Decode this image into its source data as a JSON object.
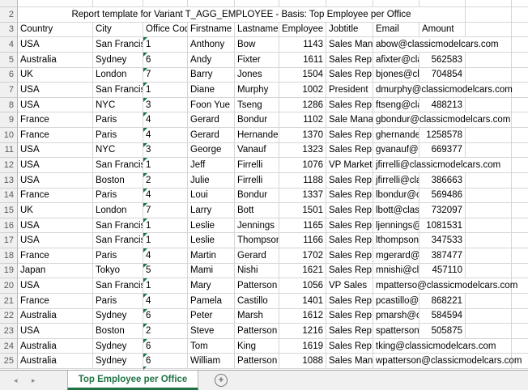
{
  "sheet": {
    "visible_row_numbers_start": 2,
    "title_row": {
      "row_number": "2",
      "title": "Report template for Variant T_AGG_EMPLOYEE - Basis: Top Employee per Office"
    },
    "header_row": {
      "row_number": "3",
      "columns": [
        "Country",
        "City",
        "Office Code",
        "Firstname",
        "Lastname",
        "Employee",
        "Jobtitle",
        "Email",
        "Amount"
      ]
    },
    "rows": [
      {
        "row_number": "4",
        "country": "USA",
        "city": "San Francisco",
        "office_code": "1",
        "firstname": "Anthony",
        "lastname": "Bow",
        "employee": "1143",
        "jobtitle": "Sales Manager (NA)",
        "email": "abow@classicmodelcars.com",
        "amount": "",
        "email_spills": true
      },
      {
        "row_number": "5",
        "country": "Australia",
        "city": "Sydney",
        "office_code": "6",
        "firstname": "Andy",
        "lastname": "Fixter",
        "employee": "1611",
        "jobtitle": "Sales Rep",
        "email": "afixter@classicmodelcars.com",
        "amount": "562583",
        "email_spills": false
      },
      {
        "row_number": "6",
        "country": "UK",
        "city": "London",
        "office_code": "7",
        "firstname": "Barry",
        "lastname": "Jones",
        "employee": "1504",
        "jobtitle": "Sales Rep",
        "email": "bjones@classicmodelcars.com",
        "amount": "704854",
        "email_spills": false
      },
      {
        "row_number": "7",
        "country": "USA",
        "city": "San Francisco",
        "office_code": "1",
        "firstname": "Diane",
        "lastname": "Murphy",
        "employee": "1002",
        "jobtitle": "President",
        "email": "dmurphy@classicmodelcars.com",
        "amount": "",
        "email_spills": true
      },
      {
        "row_number": "8",
        "country": "USA",
        "city": "NYC",
        "office_code": "3",
        "firstname": "Foon Yue",
        "lastname": "Tseng",
        "employee": "1286",
        "jobtitle": "Sales Rep",
        "email": "ftseng@classicmodelcars.com",
        "amount": "488213",
        "email_spills": false
      },
      {
        "row_number": "9",
        "country": "France",
        "city": "Paris",
        "office_code": "4",
        "firstname": "Gerard",
        "lastname": "Bondur",
        "employee": "1102",
        "jobtitle": "Sale Manager (EMEA)",
        "email": "gbondur@classicmodelcars.com",
        "amount": "",
        "email_spills": true
      },
      {
        "row_number": "10",
        "country": "France",
        "city": "Paris",
        "office_code": "4",
        "firstname": "Gerard",
        "lastname": "Hernandez",
        "employee": "1370",
        "jobtitle": "Sales Rep",
        "email": "ghernande@classicmodelcars.com",
        "amount": "1258578",
        "email_spills": false
      },
      {
        "row_number": "11",
        "country": "USA",
        "city": "NYC",
        "office_code": "3",
        "firstname": "George",
        "lastname": "Vanauf",
        "employee": "1323",
        "jobtitle": "Sales Rep",
        "email": "gvanauf@classicmodelcars.com",
        "amount": "669377",
        "email_spills": false
      },
      {
        "row_number": "12",
        "country": "USA",
        "city": "San Francisco",
        "office_code": "1",
        "firstname": "Jeff",
        "lastname": "Firrelli",
        "employee": "1076",
        "jobtitle": "VP Marketing",
        "email": "jfirrelli@classicmodelcars.com",
        "amount": "",
        "email_spills": true
      },
      {
        "row_number": "13",
        "country": "USA",
        "city": "Boston",
        "office_code": "2",
        "firstname": "Julie",
        "lastname": "Firrelli",
        "employee": "1188",
        "jobtitle": "Sales Rep",
        "email": "jfirrelli@classicmodelcars.com",
        "amount": "386663",
        "email_spills": false
      },
      {
        "row_number": "14",
        "country": "France",
        "city": "Paris",
        "office_code": "4",
        "firstname": "Loui",
        "lastname": "Bondur",
        "employee": "1337",
        "jobtitle": "Sales Rep",
        "email": "lbondur@classicmodelcars.com",
        "amount": "569486",
        "email_spills": false
      },
      {
        "row_number": "15",
        "country": "UK",
        "city": "London",
        "office_code": "7",
        "firstname": "Larry",
        "lastname": "Bott",
        "employee": "1501",
        "jobtitle": "Sales Rep",
        "email": "lbott@classicmodelcars.com",
        "amount": "732097",
        "email_spills": false
      },
      {
        "row_number": "16",
        "country": "USA",
        "city": "San Francisco",
        "office_code": "1",
        "firstname": "Leslie",
        "lastname": "Jennings",
        "employee": "1165",
        "jobtitle": "Sales Rep",
        "email": "ljennings@classicmodelcars.com",
        "amount": "1081531",
        "email_spills": false
      },
      {
        "row_number": "17",
        "country": "USA",
        "city": "San Francisco",
        "office_code": "1",
        "firstname": "Leslie",
        "lastname": "Thompson",
        "employee": "1166",
        "jobtitle": "Sales Rep",
        "email": "lthompson@classicmodelcars.com",
        "amount": "347533",
        "email_spills": false
      },
      {
        "row_number": "18",
        "country": "France",
        "city": "Paris",
        "office_code": "4",
        "firstname": "Martin",
        "lastname": "Gerard",
        "employee": "1702",
        "jobtitle": "Sales Rep",
        "email": "mgerard@classicmodelcars.com",
        "amount": "387477",
        "email_spills": false
      },
      {
        "row_number": "19",
        "country": "Japan",
        "city": "Tokyo",
        "office_code": "5",
        "firstname": "Mami",
        "lastname": "Nishi",
        "employee": "1621",
        "jobtitle": "Sales Rep",
        "email": "mnishi@classicmodelcars.com",
        "amount": "457110",
        "email_spills": false
      },
      {
        "row_number": "20",
        "country": "USA",
        "city": "San Francisco",
        "office_code": "1",
        "firstname": "Mary",
        "lastname": "Patterson",
        "employee": "1056",
        "jobtitle": "VP Sales",
        "email": "mpatterso@classicmodelcars.com",
        "amount": "",
        "email_spills": true
      },
      {
        "row_number": "21",
        "country": "France",
        "city": "Paris",
        "office_code": "4",
        "firstname": "Pamela",
        "lastname": "Castillo",
        "employee": "1401",
        "jobtitle": "Sales Rep",
        "email": "pcastillo@classicmodelcars.com",
        "amount": "868221",
        "email_spills": false
      },
      {
        "row_number": "22",
        "country": "Australia",
        "city": "Sydney",
        "office_code": "6",
        "firstname": "Peter",
        "lastname": "Marsh",
        "employee": "1612",
        "jobtitle": "Sales Rep",
        "email": "pmarsh@classicmodelcars.com",
        "amount": "584594",
        "email_spills": false
      },
      {
        "row_number": "23",
        "country": "USA",
        "city": "Boston",
        "office_code": "2",
        "firstname": "Steve",
        "lastname": "Patterson",
        "employee": "1216",
        "jobtitle": "Sales Rep",
        "email": "spatterson@classicmodelcars.com",
        "amount": "505875",
        "email_spills": false
      },
      {
        "row_number": "24",
        "country": "Australia",
        "city": "Sydney",
        "office_code": "6",
        "firstname": "Tom",
        "lastname": "King",
        "employee": "1619",
        "jobtitle": "Sales Rep",
        "email": "tking@classicmodelcars.com",
        "amount": "",
        "email_spills": true
      },
      {
        "row_number": "25",
        "country": "Australia",
        "city": "Sydney",
        "office_code": "6",
        "firstname": "William",
        "lastname": "Patterson",
        "employee": "1088",
        "jobtitle": "Sales Manager (APAC)",
        "email": "wpatterson@classicmodelcars.com",
        "amount": "",
        "email_spills": true
      }
    ]
  },
  "tab_bar": {
    "scroll_left_icon": "◂",
    "scroll_right_icon": "▸",
    "active_sheet_tab": "Top Employee per Office",
    "add_sheet_icon": "+"
  },
  "colors": {
    "accent_green": "#217346",
    "error_indicator_green": "#1e7145",
    "gridline": "#d6d6d6",
    "row_header_bg": "#f0f0f0",
    "row_header_text": "#5a5a5a",
    "tab_bar_bg": "#f0f0f0",
    "cell_text": "#000000"
  }
}
